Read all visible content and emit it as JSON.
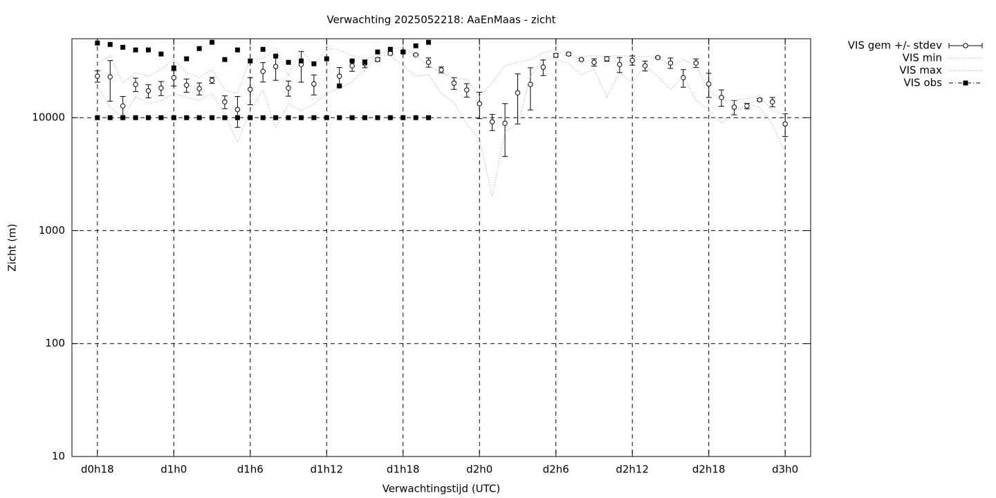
{
  "chart_data": {
    "type": "errorbar-log",
    "title": "Verwachting 2025052218: AaEnMaas - zicht",
    "xlabel": "Verwachtingstijd (UTC)",
    "ylabel": "Zicht (m)",
    "log_y": true,
    "grid": true,
    "legend": "outside-top-right",
    "xlim": [
      16,
      74
    ],
    "ylim": [
      10,
      50000
    ],
    "xticks": [
      {
        "value": 18,
        "label": "d0h18"
      },
      {
        "value": 24,
        "label": "d1h0"
      },
      {
        "value": 30,
        "label": "d1h6"
      },
      {
        "value": 36,
        "label": "d1h12"
      },
      {
        "value": 42,
        "label": "d1h18"
      },
      {
        "value": 48,
        "label": "d2h0"
      },
      {
        "value": 54,
        "label": "d2h6"
      },
      {
        "value": 60,
        "label": "d2h12"
      },
      {
        "value": 66,
        "label": "d2h18"
      },
      {
        "value": 72,
        "label": "d3h0"
      }
    ],
    "yticks": [
      10,
      100,
      1000,
      10000
    ],
    "x": [
      18,
      19,
      20,
      21,
      22,
      23,
      24,
      25,
      26,
      27,
      28,
      29,
      30,
      31,
      32,
      33,
      34,
      35,
      36,
      37,
      38,
      39,
      40,
      41,
      42,
      43,
      44,
      45,
      46,
      47,
      48,
      49,
      50,
      51,
      52,
      53,
      54,
      55,
      56,
      57,
      58,
      59,
      60,
      61,
      62,
      63,
      64,
      65,
      66,
      67,
      68,
      69,
      70,
      71,
      72
    ],
    "series": [
      {
        "name": "VIS gem +/- stdev",
        "color": "#000000",
        "style": "errorbar",
        "values": [
          23300,
          23000,
          12700,
          19700,
          17300,
          18300,
          22600,
          19400,
          18100,
          21400,
          13800,
          11800,
          17800,
          25700,
          28400,
          18300,
          29600,
          19900,
          null,
          23300,
          28800,
          30100,
          32700,
          37100,
          38200,
          36000,
          30900,
          26500,
          20200,
          17600,
          13300,
          9190,
          8930,
          16600,
          19700,
          28000,
          35600,
          36600,
          32700,
          30900,
          33200,
          29600,
          32200,
          28800,
          34100,
          30500,
          22600,
          30500,
          19900,
          15100,
          12400,
          12700,
          14400,
          13800,
          8810
        ],
        "errors": [
          2700,
          9000,
          2700,
          2700,
          2300,
          2600,
          3500,
          2600,
          2200,
          1300,
          1800,
          3600,
          4800,
          5000,
          7000,
          2800,
          9000,
          4000,
          null,
          4500,
          3100,
          2400,
          1200,
          1000,
          800,
          600,
          2900,
          1600,
          2400,
          2400,
          3500,
          1500,
          4400,
          7800,
          8000,
          4400,
          1300,
          1000,
          700,
          2300,
          1600,
          4500,
          3000,
          2900,
          400,
          3200,
          4000,
          2600,
          4800,
          2500,
          1800,
          700,
          400,
          1300,
          2000
        ]
      },
      {
        "name": "VIS min",
        "color": "#aaaaaa",
        "style": "dotted",
        "values": [
          18900,
          12400,
          10000,
          15300,
          13300,
          14200,
          16400,
          15300,
          14200,
          16400,
          10700,
          6100,
          11500,
          17600,
          8100,
          13300,
          11500,
          13300,
          16400,
          18100,
          20800,
          26800,
          35500,
          35500,
          28800,
          23300,
          24000,
          16400,
          13600,
          8700,
          6550,
          2000,
          7550,
          8700,
          23300,
          33200,
          33200,
          30000,
          24000,
          26800,
          15300,
          25000,
          20300,
          28800,
          23300,
          17600,
          23300,
          14200,
          11800,
          8900,
          11200,
          13300,
          12400,
          8700,
          4950
        ]
      },
      {
        "name": "VIS max",
        "color": "#aaaaaa",
        "style": "dotted",
        "values": [
          30000,
          35500,
          20300,
          25000,
          23300,
          26800,
          33200,
          25000,
          22600,
          26800,
          17600,
          16400,
          33200,
          33200,
          40900,
          23300,
          39800,
          28800,
          40900,
          39800,
          35500,
          33200,
          35500,
          40900,
          42000,
          35500,
          28800,
          25000,
          22600,
          21700,
          15300,
          20300,
          28800,
          30900,
          32700,
          37600,
          39800,
          34600,
          34600,
          35500,
          34600,
          35500,
          34600,
          34600,
          34600,
          28400,
          32700,
          28800,
          17600,
          14200,
          14200,
          14800,
          15700,
          11500,
          10700
        ]
      },
      {
        "name": "VIS obs",
        "color": "#000000",
        "style": "points",
        "x": [
          18,
          19,
          20,
          21,
          22,
          23,
          24,
          25,
          26,
          27,
          28,
          29,
          30,
          31,
          32,
          33,
          34,
          35,
          36,
          37,
          38,
          39,
          40,
          41,
          42,
          43,
          44,
          18,
          19,
          20,
          21,
          22,
          23,
          24,
          25,
          26,
          27,
          28,
          29,
          30,
          31,
          32,
          33,
          34,
          35,
          36,
          37,
          38,
          39,
          40,
          41,
          42,
          43,
          44
        ],
        "values": [
          45800,
          44500,
          42000,
          39800,
          39800,
          36600,
          27600,
          33200,
          40900,
          46500,
          32700,
          39800,
          31800,
          40300,
          35100,
          30900,
          31800,
          30000,
          33200,
          19100,
          31800,
          30900,
          38200,
          40300,
          38200,
          43300,
          46500,
          10000,
          10000,
          10000,
          10000,
          10000,
          10000,
          10000,
          10000,
          10000,
          10000,
          10000,
          10000,
          10000,
          10000,
          10000,
          10000,
          10000,
          10000,
          10000,
          10000,
          10000,
          10000,
          10000,
          10000,
          10000,
          10000,
          10000
        ]
      }
    ]
  }
}
